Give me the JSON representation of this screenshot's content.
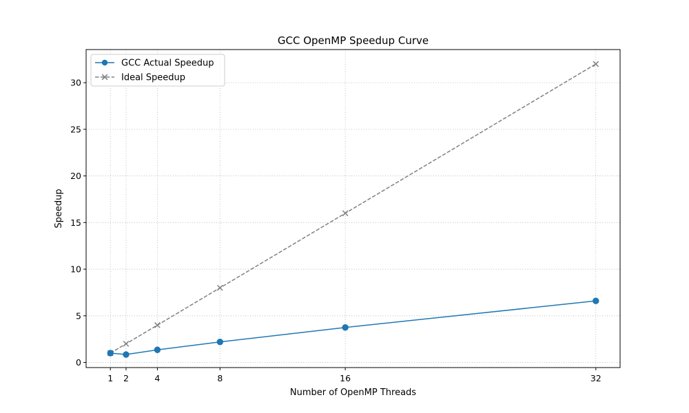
{
  "chart_data": {
    "type": "line",
    "title": "GCC OpenMP Speedup Curve",
    "xlabel": "Number of OpenMP Threads",
    "ylabel": "Speedup",
    "x": [
      1,
      2,
      4,
      8,
      16,
      32
    ],
    "x_ticks": [
      1,
      2,
      4,
      8,
      16,
      32
    ],
    "y_ticks": [
      0,
      5,
      10,
      15,
      20,
      25,
      30
    ],
    "xlim": [
      -0.55,
      33.55
    ],
    "ylim": [
      -0.55,
      33.55
    ],
    "grid": true,
    "legend_position": "top-left",
    "series": [
      {
        "name": "GCC Actual Speedup",
        "values": [
          1.0,
          0.85,
          1.35,
          2.2,
          3.75,
          6.6
        ],
        "color": "#1f77b4",
        "line_style": "solid",
        "marker": "circle"
      },
      {
        "name": "Ideal Speedup",
        "values": [
          1,
          2,
          4,
          8,
          16,
          32
        ],
        "color": "#808080",
        "line_style": "dashed",
        "marker": "x"
      }
    ]
  }
}
